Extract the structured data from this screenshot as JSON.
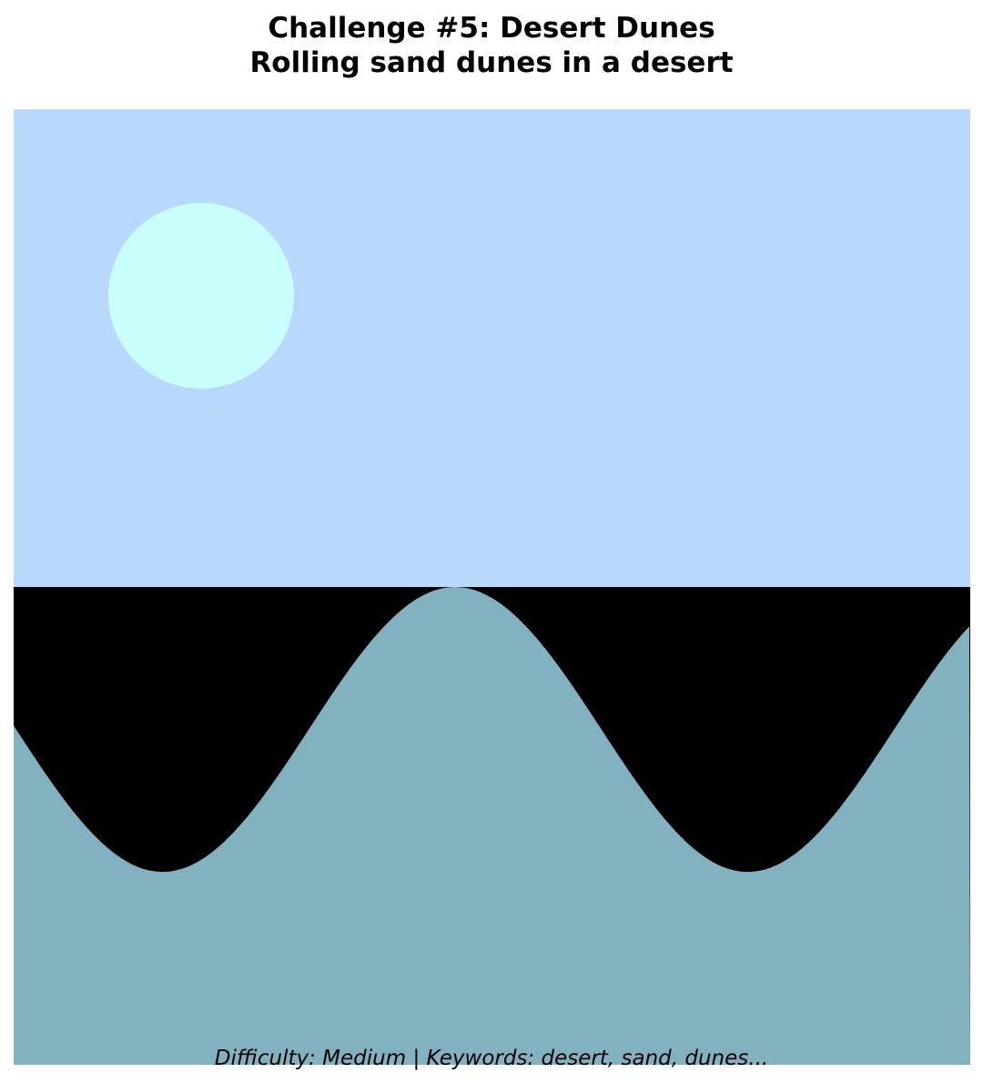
{
  "header": {
    "title": "Challenge #5: Desert Dunes",
    "subtitle": "Rolling sand dunes in a desert"
  },
  "footer": {
    "caption": "Difficulty: Medium | Keywords: desert, sand, dunes..."
  }
}
